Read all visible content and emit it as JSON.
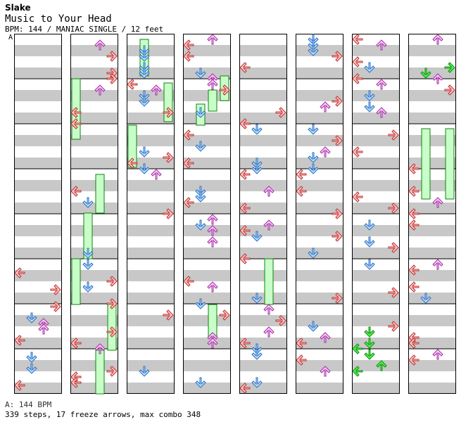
{
  "header": {
    "artist": "Slake",
    "title": "Music to Your Head",
    "meta": "BPM: 144 / MANIAC SINGLE / 12 feet"
  },
  "section_label": "A",
  "footer": {
    "bpm": "A: 144 BPM",
    "stats": "339 steps, 17 freeze arrows, max combo 348"
  },
  "colors": {
    "stripe": "#c8c8c8",
    "left_right_arrow": "#ffc8c8",
    "down_arrow": "#b4dcff",
    "up_arrow_pink": "#ffc8ff",
    "freeze": "#c8ffc8",
    "shock_green": "#50f050"
  }
}
